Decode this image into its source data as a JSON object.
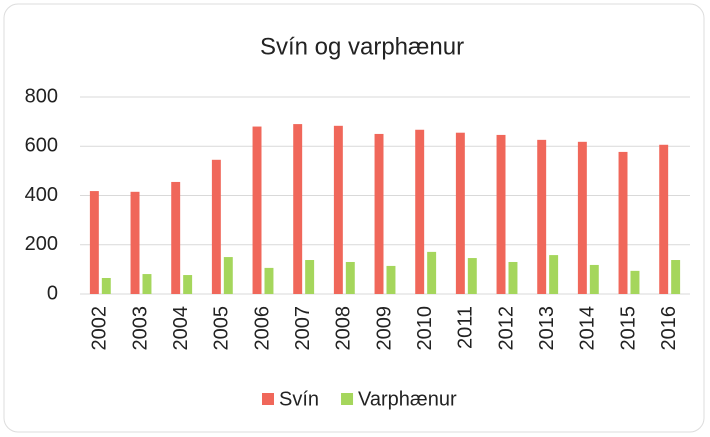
{
  "chart_data": {
    "type": "bar",
    "title": "Svín og varphænur",
    "categories": [
      "2002",
      "2003",
      "2004",
      "2005",
      "2006",
      "2007",
      "2008",
      "2009",
      "2010",
      "2011",
      "2012",
      "2013",
      "2014",
      "2015",
      "2016"
    ],
    "series": [
      {
        "name": "Svín",
        "color": "#f0675a",
        "values": [
          418,
          415,
          455,
          545,
          680,
          690,
          683,
          650,
          667,
          655,
          646,
          626,
          618,
          577,
          606
        ]
      },
      {
        "name": "Varphænur",
        "color": "#a5d65c",
        "values": [
          65,
          81,
          77,
          150,
          106,
          138,
          130,
          114,
          171,
          146,
          130,
          158,
          118,
          94,
          138
        ]
      }
    ],
    "ylim": [
      0,
      800
    ],
    "yticks": [
      0,
      200,
      400,
      600,
      800
    ],
    "grid": true,
    "legend": "bottom"
  }
}
